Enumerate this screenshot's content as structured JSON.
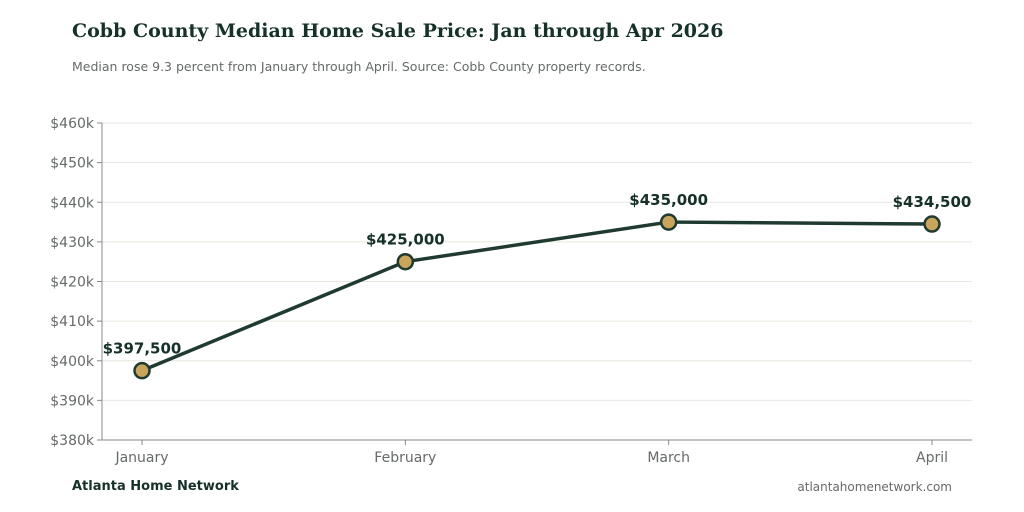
{
  "header": {
    "title": "Cobb County Median Home Sale Price: Jan through Apr 2026",
    "subtitle": "Median rose 9.3 percent from January through April. Source: Cobb County property records."
  },
  "footer": {
    "brand": "Atlanta Home Network",
    "site": "atlantahomenetwork.com"
  },
  "chart_data": {
    "type": "line",
    "title": "Cobb County Median Home Sale Price: Jan through Apr 2026",
    "subtitle": "Median rose 9.3 percent from January through April. Source: Cobb County property records.",
    "xlabel": "",
    "ylabel": "",
    "categories": [
      "January",
      "February",
      "March",
      "April"
    ],
    "series": [
      {
        "values": [
          397500,
          425000,
          435000,
          434500
        ],
        "data_labels": [
          "$397,500",
          "$425,000",
          "$435,000",
          "$434,500"
        ]
      }
    ],
    "ylim": [
      380000,
      460000
    ],
    "yticks": [
      380000,
      390000,
      400000,
      410000,
      420000,
      430000,
      440000,
      450000,
      460000
    ],
    "ytick_labels": [
      "$380k",
      "$390k",
      "$400k",
      "$410k",
      "$420k",
      "$430k",
      "$440k",
      "$450k",
      "$460k"
    ],
    "grid": true,
    "colors": {
      "line": "#1f3b30",
      "marker_fill": "#c9a45c",
      "marker_edge": "#1f3b30",
      "grid": "#e8e6df",
      "axis": "#8a8a8a",
      "text": "#666a6a",
      "label": "#16302a"
    }
  }
}
